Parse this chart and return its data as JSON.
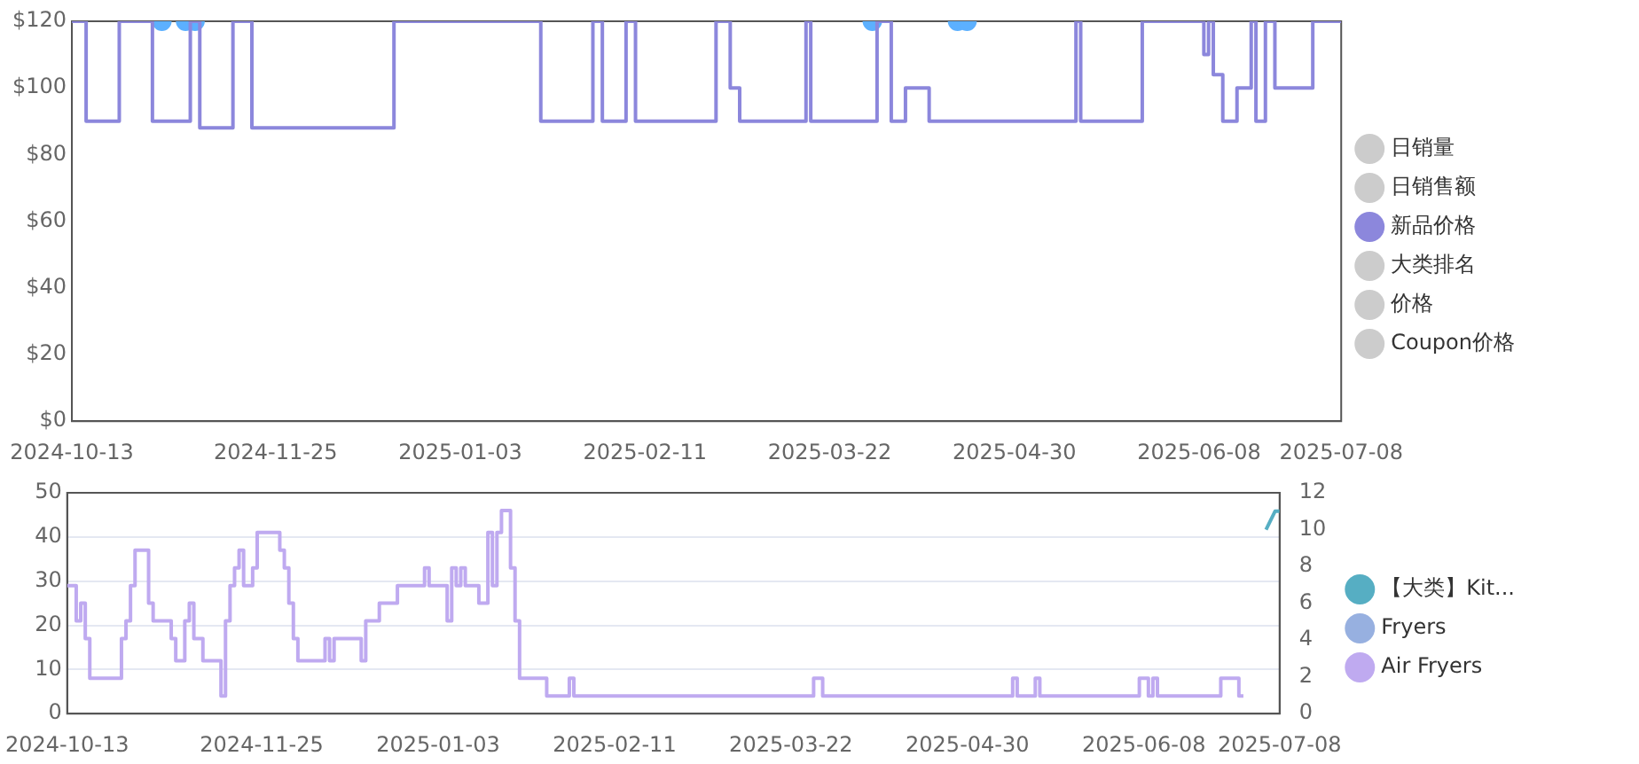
{
  "chart_data": [
    {
      "type": "step",
      "xlim": [
        "2024-10-13",
        "2025-07-08"
      ],
      "xticks": [
        "2024-10-13",
        "2024-11-25",
        "2025-01-03",
        "2025-02-11",
        "2025-03-22",
        "2025-04-30",
        "2025-06-08",
        "2025-07-08"
      ],
      "ylim": [
        0,
        120
      ],
      "yticks": [
        {
          "value": 0,
          "label": "$0"
        },
        {
          "value": 20,
          "label": "$20"
        },
        {
          "value": 40,
          "label": "$40"
        },
        {
          "value": 60,
          "label": "$60"
        },
        {
          "value": 80,
          "label": "$80"
        },
        {
          "value": 100,
          "label": "$100"
        },
        {
          "value": 120,
          "label": "$120"
        }
      ],
      "legend": "right",
      "series": [
        {
          "name": "日销量",
          "color": "#cccccc"
        },
        {
          "name": "日销售额",
          "color": "#cccccc"
        },
        {
          "name": "新品价格",
          "color": "#8c87dc",
          "x": [
            "2024-10-13",
            "2024-10-16",
            "2024-10-23",
            "2024-10-30",
            "2024-11-07",
            "2024-11-09",
            "2024-11-16",
            "2024-11-20",
            "2024-12-20",
            "2025-01-20",
            "2025-01-31",
            "2025-02-02",
            "2025-02-07",
            "2025-02-09",
            "2025-02-26",
            "2025-03-01",
            "2025-03-03",
            "2025-03-17",
            "2025-03-18",
            "2025-04-01",
            "2025-04-04",
            "2025-04-07",
            "2025-04-12",
            "2025-05-13",
            "2025-05-14",
            "2025-05-27",
            "2025-06-09",
            "2025-06-10",
            "2025-06-11",
            "2025-06-13",
            "2025-06-16",
            "2025-06-19",
            "2025-06-20",
            "2025-06-22",
            "2025-06-24",
            "2025-07-02",
            "2025-07-08"
          ],
          "values": [
            120,
            90,
            120,
            90,
            120,
            88,
            120,
            88,
            120,
            90,
            120,
            90,
            120,
            90,
            120,
            100,
            90,
            120,
            90,
            120,
            90,
            100,
            90,
            120,
            90,
            120,
            110,
            120,
            104,
            90,
            100,
            120,
            90,
            120,
            100,
            120,
            120
          ]
        },
        {
          "name": "大类排名",
          "color": "#cccccc"
        },
        {
          "name": "价格",
          "color": "#cccccc"
        },
        {
          "name": "Coupon价格",
          "color": "#cccccc"
        },
        {
          "type": "scatter",
          "color": "#5cb0ff",
          "x": [
            "2024-11-01",
            "2024-11-06",
            "2024-11-08",
            "2025-03-31",
            "2025-04-18",
            "2025-04-20"
          ],
          "values": [
            120,
            120,
            120,
            120,
            120,
            120
          ]
        }
      ]
    },
    {
      "type": "step",
      "xlim": [
        "2024-10-13",
        "2025-07-08"
      ],
      "xticks": [
        "2024-10-13",
        "2024-11-25",
        "2025-01-03",
        "2025-02-11",
        "2025-03-22",
        "2025-04-30",
        "2025-06-08",
        "2025-07-08"
      ],
      "ylim": [
        0,
        50
      ],
      "yticks": [
        0,
        10,
        20,
        30,
        40,
        50
      ],
      "y2lim": [
        0,
        12
      ],
      "y2ticks": [
        0,
        2,
        4,
        6,
        8,
        10,
        12
      ],
      "grid": "y",
      "legend": "right",
      "series": [
        {
          "name": "【大类】Kit...",
          "type": "line",
          "color": "#56aec3",
          "axis": "y2",
          "x": [
            "2025-07-05",
            "2025-07-07",
            "2025-07-08"
          ],
          "values": [
            10,
            11,
            11
          ]
        },
        {
          "name": "Fryers",
          "color": "#97b0e0"
        },
        {
          "name": "Air Fryers",
          "color": "#bfaaf0",
          "x": [
            "2024-10-13",
            "2024-10-15",
            "2024-10-16",
            "2024-10-17",
            "2024-10-18",
            "2024-10-25",
            "2024-10-26",
            "2024-10-27",
            "2024-10-28",
            "2024-10-31",
            "2024-11-01",
            "2024-11-05",
            "2024-11-06",
            "2024-11-08",
            "2024-11-09",
            "2024-11-10",
            "2024-11-12",
            "2024-11-16",
            "2024-11-17",
            "2024-11-18",
            "2024-11-19",
            "2024-11-20",
            "2024-11-21",
            "2024-11-23",
            "2024-11-24",
            "2024-11-29",
            "2024-11-30",
            "2024-12-01",
            "2024-12-02",
            "2024-12-03",
            "2024-12-09",
            "2024-12-10",
            "2024-12-11",
            "2024-12-17",
            "2024-12-18",
            "2024-12-21",
            "2024-12-25",
            "2024-12-31",
            "2025-01-01",
            "2025-01-05",
            "2025-01-06",
            "2025-01-07",
            "2025-01-08",
            "2025-01-09",
            "2025-01-12",
            "2025-01-14",
            "2025-01-15",
            "2025-01-16",
            "2025-01-17",
            "2025-01-19",
            "2025-01-20",
            "2025-01-21",
            "2025-01-27",
            "2025-02-01",
            "2025-02-02",
            "2025-03-27",
            "2025-03-29",
            "2025-05-10",
            "2025-05-11",
            "2025-05-15",
            "2025-05-16",
            "2025-06-07",
            "2025-06-09",
            "2025-06-10",
            "2025-06-11",
            "2025-06-25",
            "2025-06-29",
            "2025-06-30"
          ],
          "values": [
            29,
            21,
            25,
            17,
            8,
            17,
            21,
            29,
            37,
            25,
            21,
            17,
            12,
            21,
            25,
            17,
            12,
            4,
            21,
            29,
            33,
            37,
            29,
            33,
            41,
            37,
            33,
            25,
            17,
            12,
            17,
            12,
            17,
            12,
            21,
            25,
            29,
            33,
            29,
            21,
            33,
            29,
            33,
            29,
            25,
            41,
            29,
            41,
            46,
            33,
            21,
            8,
            4,
            8,
            4,
            8,
            4,
            8,
            4,
            8,
            4,
            8,
            4,
            8,
            4,
            8,
            4,
            4
          ]
        }
      ]
    }
  ]
}
